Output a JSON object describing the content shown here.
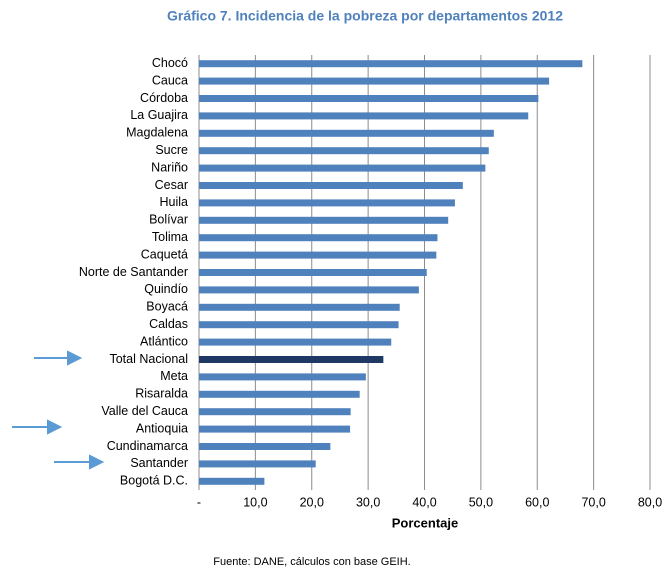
{
  "chart_data": {
    "type": "barh",
    "title": "Gráfico 7. Incidencia de la pobreza por departamentos 2012",
    "xlabel": "Porcentaje",
    "source": "Fuente: DANE, cálculos con base GEIH.",
    "categories": [
      "Chocó",
      "Cauca",
      "Córdoba",
      "La Guajira",
      "Magdalena",
      "Sucre",
      "Nariño",
      "Cesar",
      "Huila",
      "Bolívar",
      "Tolima",
      "Caquetá",
      "Norte de Santander",
      "Quindío",
      "Boyacá",
      "Caldas",
      "Atlántico",
      "Total Nacional",
      "Meta",
      "Risaralda",
      "Valle del Cauca",
      "Antioquia",
      "Cundinamarca",
      "Santander",
      "Bogotá D.C."
    ],
    "values": [
      68.0,
      62.1,
      60.2,
      58.4,
      52.3,
      51.4,
      50.8,
      46.8,
      45.4,
      44.2,
      42.3,
      42.1,
      40.4,
      39.0,
      35.6,
      35.4,
      34.1,
      32.7,
      29.6,
      28.5,
      26.9,
      26.8,
      23.3,
      20.7,
      11.6
    ],
    "colors": [
      "#4f81bd",
      "#4f81bd",
      "#4f81bd",
      "#4f81bd",
      "#4f81bd",
      "#4f81bd",
      "#4f81bd",
      "#4f81bd",
      "#4f81bd",
      "#4f81bd",
      "#4f81bd",
      "#4f81bd",
      "#4f81bd",
      "#4f81bd",
      "#4f81bd",
      "#4f81bd",
      "#4f81bd",
      "#1f3864",
      "#4f81bd",
      "#4f81bd",
      "#4f81bd",
      "#4f81bd",
      "#4f81bd",
      "#4f81bd",
      "#4f81bd"
    ],
    "xlim": [
      0,
      80
    ],
    "xticks": [
      {
        "value": 0,
        "label": "-"
      },
      {
        "value": 10,
        "label": "10,0"
      },
      {
        "value": 20,
        "label": "20,0"
      },
      {
        "value": 30,
        "label": "30,0"
      },
      {
        "value": 40,
        "label": "40,0"
      },
      {
        "value": 50,
        "label": "50,0"
      },
      {
        "value": 60,
        "label": "60,0"
      },
      {
        "value": 70,
        "label": "70,0"
      },
      {
        "value": 80,
        "label": "80,0"
      }
    ],
    "grid": true
  }
}
